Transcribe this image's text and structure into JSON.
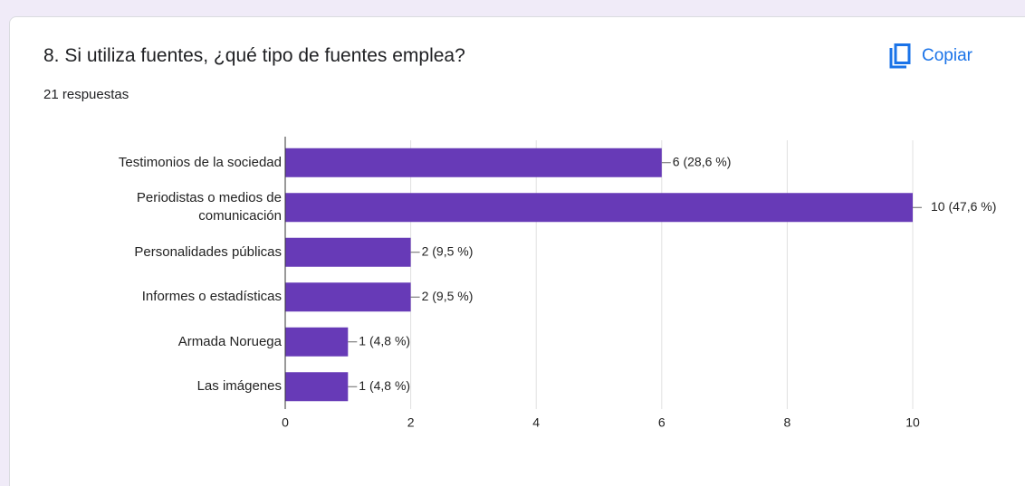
{
  "copy_button": "Copiar",
  "chart_data": {
    "type": "hbar",
    "title": "8. Si utiliza fuentes, ¿qué tipo de fuentes emplea?",
    "subtitle": "21 respuestas",
    "categories": [
      "Testimonios de la sociedad",
      "Periodistas o medios de comunicación",
      "Personalidades públicas",
      "Informes o estadísticas",
      "Armada Noruega",
      "Las imágenes"
    ],
    "values": [
      6,
      10,
      2,
      2,
      1,
      1
    ],
    "value_labels": [
      "6 (28,6 %)",
      "10 (47,6 %)",
      "2 (9,5 %)",
      "2 (9,5 %)",
      "1 (4,8 %)",
      "1 (4,8 %)"
    ],
    "color": "#673ab7",
    "xlim": [
      0,
      10
    ],
    "xticks": [
      0,
      2,
      4,
      6,
      8,
      10
    ],
    "grid": true
  }
}
